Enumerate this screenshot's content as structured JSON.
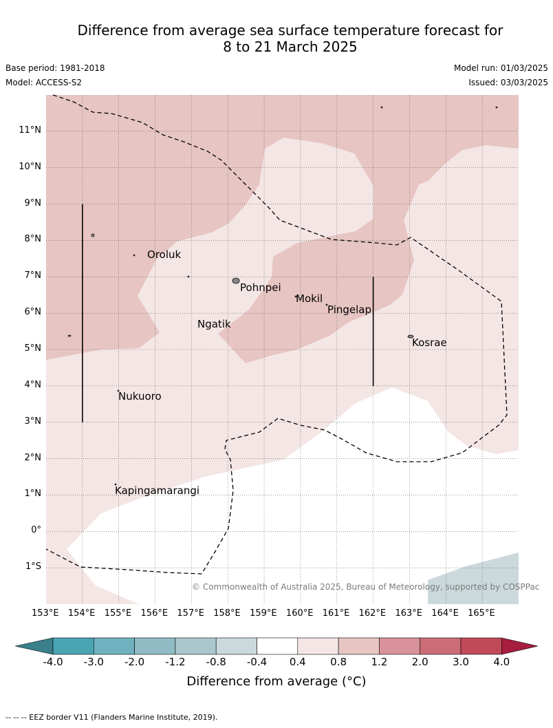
{
  "title": {
    "line1": "Difference from average sea surface temperature forecast for",
    "line2": "8 to 21 March 2025"
  },
  "meta": {
    "base_period": "Base period: 1981-2018",
    "model": "Model: ACCESS-S2",
    "model_run": "Model run: 01/03/2025",
    "issued": "Issued: 03/03/2025"
  },
  "map": {
    "lat_labels": [
      "11°N",
      "10°N",
      "9°N",
      "8°N",
      "7°N",
      "6°N",
      "5°N",
      "4°N",
      "3°N",
      "2°N",
      "1°N",
      "0°",
      "1°S"
    ],
    "lon_labels": [
      "153°E",
      "154°E",
      "155°E",
      "156°E",
      "157°E",
      "158°E",
      "159°E",
      "160°E",
      "161°E",
      "162°E",
      "163°E",
      "164°E",
      "165°E"
    ],
    "places": [
      "Oroluk",
      "Pohnpei",
      "Mokil",
      "Pingelap",
      "Ngatik",
      "Kosrae",
      "Nukuoro",
      "Kapingamarangi"
    ],
    "copyright": "© Commonwealth of Australia 2025, Bureau of Meteorology, supported by COSPPac",
    "colors": {
      "anom_0_4_0_8": "#f4e6e5",
      "anom_0_8_1_2": "#e6c5c2",
      "anom_m0_8_m0_4": "#cbd9dc",
      "neutral": "#ffffff"
    }
  },
  "colorbar": {
    "labels": [
      "-4.0",
      "-3.0",
      "-2.0",
      "-1.2",
      "-0.8",
      "-0.4",
      "0.4",
      "0.8",
      "1.2",
      "2.0",
      "3.0",
      "4.0"
    ],
    "colors": [
      "#3a7f8a",
      "#4aa3b3",
      "#6fb1bf",
      "#8fbbc4",
      "#aac8cc",
      "#cbd9dc",
      "#ffffff",
      "#f4e6e5",
      "#e6c5c2",
      "#d9929a",
      "#cb6c77",
      "#c04a58",
      "#a71d3e"
    ],
    "title": "Difference from average (°C)"
  },
  "footnote": "--  --  -- EEZ border V11 (Flanders Marine Institute, 2019)."
}
